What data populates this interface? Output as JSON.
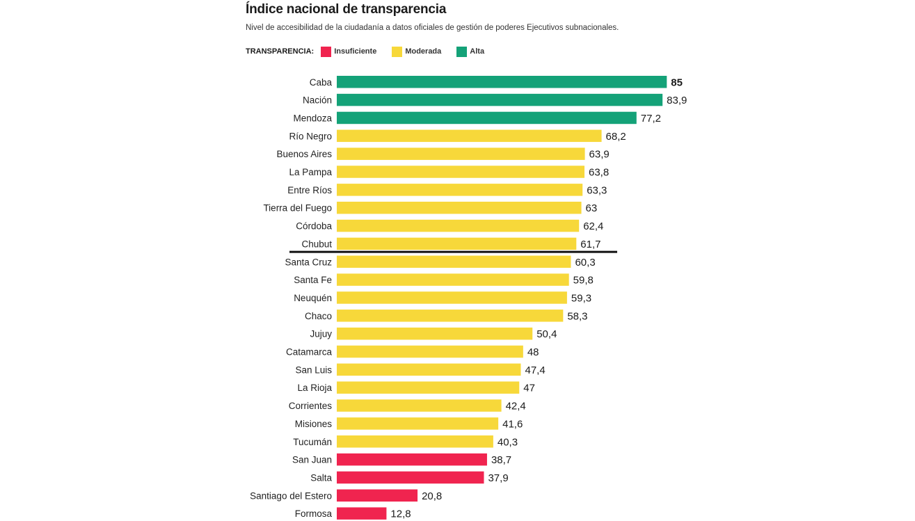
{
  "chart_data": {
    "type": "bar",
    "orientation": "horizontal",
    "title": "Índice nacional de transparencia",
    "subtitle": "Nivel de accesibilidad de la ciudadanía a datos oficiales de gestión de poderes Ejecutivos subnacionales.",
    "legend": {
      "title": "TRANSPARENCIA:",
      "placement": "top-left",
      "items": [
        {
          "label": "Insuficiente",
          "color": "#f0244f"
        },
        {
          "label": "Moderada",
          "color": "#f7d83a"
        },
        {
          "label": "Alta",
          "color": "#14a278"
        }
      ]
    },
    "xlim": [
      0,
      85
    ],
    "grid": false,
    "reference_line_after": "Chubut",
    "categories": [
      "Caba",
      "Nación",
      "Mendoza",
      "Río Negro",
      "Buenos Aires",
      "La Pampa",
      "Entre Ríos",
      "Tierra del Fuego",
      "Córdoba",
      "Chubut",
      "Santa Cruz",
      "Santa Fe",
      "Neuquén",
      "Chaco",
      "Jujuy",
      "Catamarca",
      "San Luis",
      "La Rioja",
      "Corrientes",
      "Misiones",
      "Tucumán",
      "San Juan",
      "Salta",
      "Santiago del Estero",
      "Formosa"
    ],
    "values": [
      85,
      83.9,
      77.2,
      68.2,
      63.9,
      63.8,
      63.3,
      63,
      62.4,
      61.7,
      60.3,
      59.8,
      59.3,
      58.3,
      50.4,
      48,
      47.4,
      47,
      42.4,
      41.6,
      40.3,
      38.7,
      37.9,
      20.8,
      12.8
    ],
    "value_labels": [
      "85",
      "83,9",
      "77,2",
      "68,2",
      "63,9",
      "63,8",
      "63,3",
      "63",
      "62,4",
      "61,7",
      "60,3",
      "59,8",
      "59,3",
      "58,3",
      "50,4",
      "48",
      "47,4",
      "47",
      "42,4",
      "41,6",
      "40,3",
      "38,7",
      "37,9",
      "20,8",
      "12,8"
    ],
    "levels": [
      "Alta",
      "Alta",
      "Alta",
      "Moderada",
      "Moderada",
      "Moderada",
      "Moderada",
      "Moderada",
      "Moderada",
      "Moderada",
      "Moderada",
      "Moderada",
      "Moderada",
      "Moderada",
      "Moderada",
      "Moderada",
      "Moderada",
      "Moderada",
      "Moderada",
      "Moderada",
      "Moderada",
      "Insuficiente",
      "Insuficiente",
      "Insuficiente",
      "Insuficiente"
    ]
  }
}
